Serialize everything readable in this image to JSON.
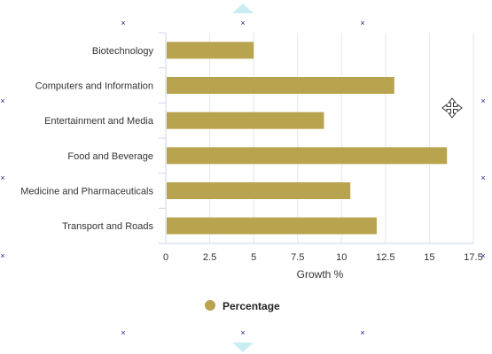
{
  "chart_data": {
    "type": "bar",
    "orientation": "horizontal",
    "categories": [
      "Biotechnology",
      "Computers and Information",
      "Entertainment and Media",
      "Food and Beverage",
      "Medicine and Pharmaceuticals",
      "Transport and Roads"
    ],
    "series": [
      {
        "name": "Percentage",
        "values": [
          5,
          13,
          9,
          16,
          10.5,
          12
        ],
        "color": "#b8a44e"
      }
    ],
    "xlabel": "Growth %",
    "ylabel": "",
    "xlim": [
      0,
      17.5
    ],
    "xticks": [
      "0",
      "2.5",
      "5",
      "7.5",
      "10",
      "12.5",
      "15",
      "17.5"
    ],
    "grid": true,
    "legend_position": "bottom-center"
  },
  "icons": {
    "move": "move-cursor-icon",
    "resize_up": "resize-arrow-up-icon",
    "resize_down": "resize-arrow-down-icon",
    "handle": "resize-handle-icon"
  },
  "colors": {
    "bar": "#b8a44e",
    "grid": "#e6e6e6",
    "axis": "#ccd6eb",
    "handle_arrow": "#c8eef4",
    "handle_x": "#1a1a8c"
  }
}
